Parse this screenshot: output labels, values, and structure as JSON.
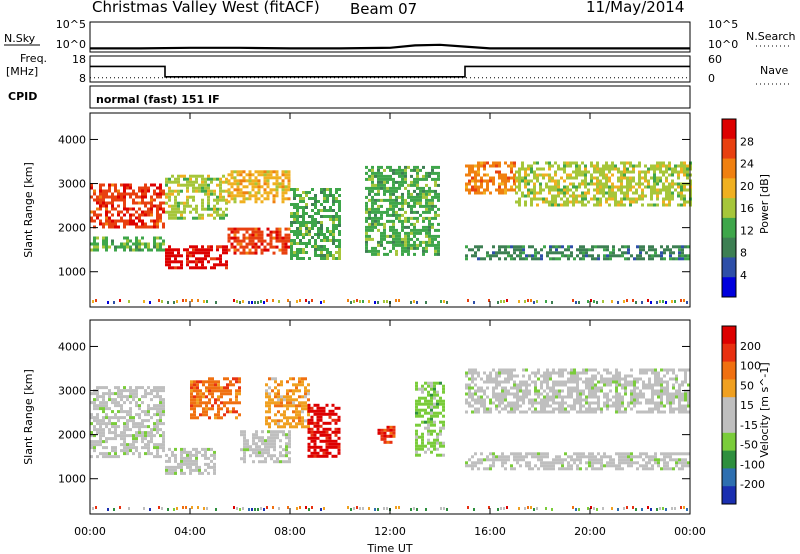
{
  "header": {
    "station": "Christmas Valley West (fitACF)",
    "beam": "Beam 07",
    "date": "11/May/2014"
  },
  "strip": {
    "nsky_label": "N.Sky",
    "nsearch_label": "N.Search",
    "noise_ticks": [
      "10^5",
      "10^0"
    ],
    "freq_label_1": "Freq.",
    "freq_label_2": "[MHz]",
    "freq_ticks": [
      "18",
      "8"
    ],
    "nave_label": "Nave",
    "nave_ticks": [
      "60",
      "0"
    ],
    "cpid_label": "CPID",
    "cpid_value": "normal (fast) 151 IF"
  },
  "colors": {
    "power_scale": [
      "#0000dd",
      "#2e4fa8",
      "#3d7f53",
      "#3ea64a",
      "#a6c63a",
      "#f0b020",
      "#f08010",
      "#e84010",
      "#dd0000"
    ],
    "velocity_scale": [
      "#1a2fb0",
      "#2e6fb0",
      "#2e8f3e",
      "#7acc3a",
      "#bfbfbf",
      "#bfbfbf",
      "#f0a020",
      "#f07010",
      "#e83010",
      "#dd0000"
    ]
  },
  "chart_data": [
    {
      "type": "line",
      "title": "N.Sky / N.Search",
      "x_ticks": [
        "00:00",
        "04:00",
        "08:00",
        "12:00",
        "16:00",
        "20:00",
        "00:00"
      ],
      "y_ticks": [
        "10^5",
        "10^0"
      ],
      "series": [
        {
          "name": "N.Sky",
          "x": [
            0,
            2,
            4,
            6,
            8,
            10,
            12,
            13,
            14,
            15,
            16,
            18,
            20,
            22,
            24
          ],
          "y": [
            0.6,
            0.6,
            0.7,
            0.7,
            0.6,
            0.6,
            0.7,
            1.1,
            1.2,
            0.9,
            0.6,
            0.6,
            0.6,
            0.6,
            0.6
          ]
        }
      ]
    },
    {
      "type": "line",
      "title": "Freq. [MHz] / Nave",
      "x_ticks": [
        "00:00",
        "04:00",
        "08:00",
        "12:00",
        "16:00",
        "20:00",
        "00:00"
      ],
      "y_ticks": [
        "18",
        "8"
      ],
      "series": [
        {
          "name": "Freq.",
          "x": [
            0,
            3,
            3,
            15,
            15,
            24
          ],
          "y": [
            14,
            14,
            10,
            10,
            14,
            14
          ]
        },
        {
          "name": "Nave",
          "x": [
            0,
            24
          ],
          "y": [
            10,
            10
          ]
        }
      ]
    },
    {
      "type": "heatmap",
      "xlabel": "Time UT",
      "ylabel": "Slant Range [km]",
      "colorbar_label": "Power [dB]",
      "colorbar_ticks": [
        "28",
        "24",
        "20",
        "16",
        "12",
        "8",
        "4"
      ],
      "x_ticks": [
        "00:00",
        "04:00",
        "08:00",
        "12:00",
        "16:00",
        "20:00",
        "00:00"
      ],
      "y_ticks": [
        "1000",
        "2000",
        "3000",
        "4000"
      ],
      "xlim": [
        0,
        24
      ],
      "ylim": [
        200,
        4600
      ],
      "bands": [
        {
          "t0": 0.0,
          "t1": 3.0,
          "r0": 2000,
          "r1": 3000,
          "level": 7
        },
        {
          "t0": 0.0,
          "t1": 3.0,
          "r0": 1500,
          "r1": 1800,
          "level": 3
        },
        {
          "t0": 3.0,
          "t1": 5.5,
          "r0": 1100,
          "r1": 1600,
          "level": 8
        },
        {
          "t0": 3.0,
          "t1": 5.5,
          "r0": 2200,
          "r1": 3200,
          "level": 4
        },
        {
          "t0": 5.5,
          "t1": 8.0,
          "r0": 1400,
          "r1": 2000,
          "level": 7
        },
        {
          "t0": 5.5,
          "t1": 8.0,
          "r0": 2600,
          "r1": 3300,
          "level": 5
        },
        {
          "t0": 8.0,
          "t1": 10.0,
          "r0": 1300,
          "r1": 2900,
          "level": 3
        },
        {
          "t0": 11.0,
          "t1": 14.0,
          "r0": 1400,
          "r1": 3400,
          "level": 3
        },
        {
          "t0": 15.0,
          "t1": 17.0,
          "r0": 2800,
          "r1": 3500,
          "level": 6
        },
        {
          "t0": 15.0,
          "t1": 24.0,
          "r0": 1300,
          "r1": 1600,
          "level": 2
        },
        {
          "t0": 17.0,
          "t1": 24.0,
          "r0": 2500,
          "r1": 3500,
          "level": 4
        }
      ]
    },
    {
      "type": "heatmap",
      "xlabel": "Time UT",
      "ylabel": "Slant Range [km]",
      "colorbar_label": "Velocity [m s^-1]",
      "colorbar_ticks": [
        "200",
        "100",
        "50",
        "15",
        "-15",
        "-50",
        "-100",
        "-200"
      ],
      "x_ticks": [
        "00:00",
        "04:00",
        "08:00",
        "12:00",
        "16:00",
        "20:00",
        "00:00"
      ],
      "y_ticks": [
        "1000",
        "2000",
        "3000",
        "4000"
      ],
      "xlim": [
        0,
        24
      ],
      "ylim": [
        200,
        4600
      ],
      "bands": [
        {
          "t0": 0.0,
          "t1": 3.0,
          "r0": 1500,
          "r1": 3100,
          "level": 4
        },
        {
          "t0": 3.0,
          "t1": 5.0,
          "r0": 1100,
          "r1": 1700,
          "level": 4
        },
        {
          "t0": 4.0,
          "t1": 6.0,
          "r0": 2400,
          "r1": 3300,
          "level": 7
        },
        {
          "t0": 6.0,
          "t1": 8.0,
          "r0": 1400,
          "r1": 2100,
          "level": 4
        },
        {
          "t0": 7.0,
          "t1": 8.7,
          "r0": 2200,
          "r1": 3300,
          "level": 6
        },
        {
          "t0": 8.7,
          "t1": 10.0,
          "r0": 1500,
          "r1": 2700,
          "level": 9
        },
        {
          "t0": 11.5,
          "t1": 12.2,
          "r0": 1800,
          "r1": 2200,
          "level": 8
        },
        {
          "t0": 13.0,
          "t1": 14.2,
          "r0": 1500,
          "r1": 3200,
          "level": 3
        },
        {
          "t0": 15.0,
          "t1": 24.0,
          "r0": 1200,
          "r1": 1600,
          "level": 4
        },
        {
          "t0": 15.0,
          "t1": 24.0,
          "r0": 2500,
          "r1": 3500,
          "level": 4
        }
      ]
    }
  ]
}
